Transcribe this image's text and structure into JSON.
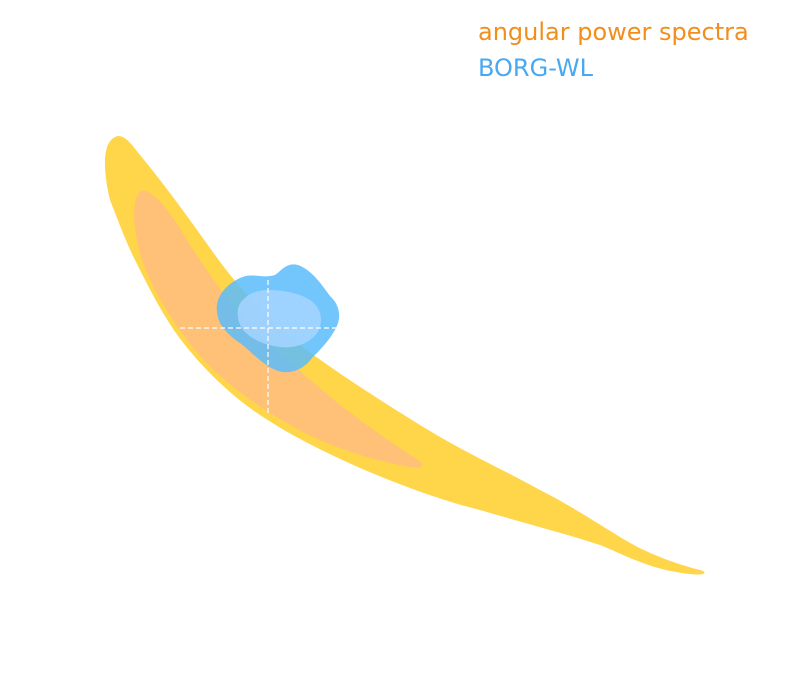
{
  "chart_data": {
    "type": "contour",
    "title": "",
    "xlabel": "",
    "ylabel": "",
    "legend_position": "top-right",
    "grid": false,
    "series": [
      {
        "name": "angular power spectra",
        "legend_color": "#f28e1c",
        "levels": [
          {
            "level": "outer",
            "color": "#ffd54a"
          },
          {
            "level": "inner",
            "color": "#ffc078"
          }
        ]
      },
      {
        "name": "BORG-WL",
        "legend_color": "#4aa8f0",
        "levels": [
          {
            "level": "outer",
            "color": "#5bbcfc"
          },
          {
            "level": "inner",
            "color": "#a6d4ff"
          }
        ]
      }
    ],
    "marker": {
      "style": "dashed-crosshair",
      "color": "#ffffff"
    }
  }
}
